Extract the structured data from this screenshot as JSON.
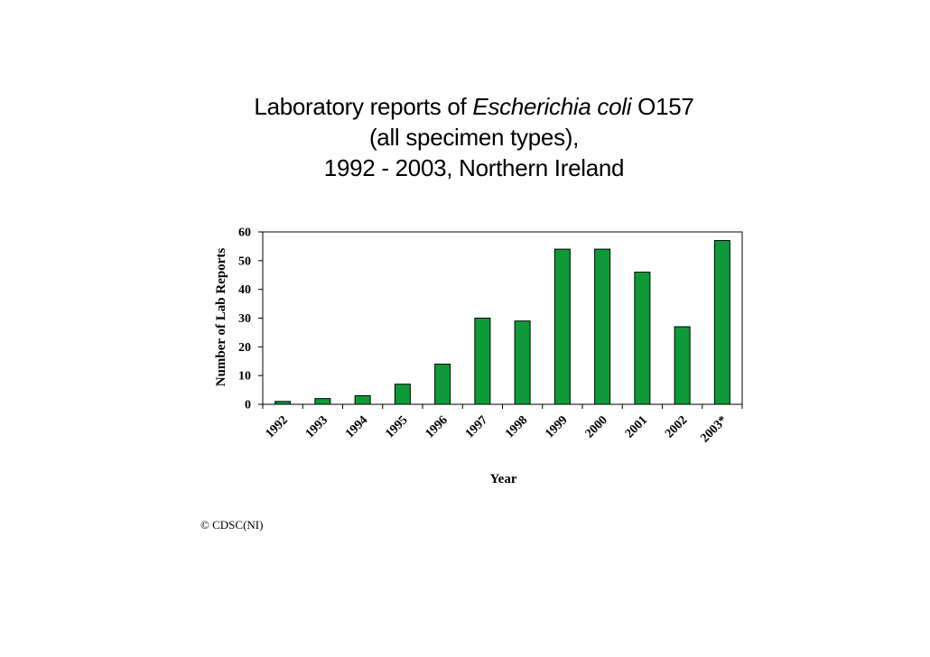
{
  "title": {
    "line1_prefix": "Laboratory reports of ",
    "line1_italic": "Escherichia coli",
    "line1_suffix": " O157",
    "line2": "(all specimen types),",
    "line3": "1992 - 2003, Northern Ireland"
  },
  "copyright": "© CDSC(NI)",
  "colors": {
    "bar_fill": "#0f9a3a",
    "bar_stroke": "#000000",
    "axis": "#000000"
  },
  "chart_data": {
    "type": "bar",
    "title": "Laboratory reports of Escherichia coli O157 (all specimen types), 1992 - 2003, Northern Ireland",
    "xlabel": "Year",
    "ylabel": "Number of Lab Reports",
    "categories": [
      "1992",
      "1993",
      "1994",
      "1995",
      "1996",
      "1997",
      "1998",
      "1999",
      "2000",
      "2001",
      "2002",
      "2003*"
    ],
    "values": [
      1,
      2,
      3,
      7,
      14,
      30,
      29,
      54,
      54,
      46,
      27,
      57
    ],
    "ylim": [
      0,
      60
    ],
    "yticks": [
      "0",
      "10",
      "20",
      "30",
      "40",
      "50",
      "60"
    ],
    "grid": false,
    "legend": "none"
  }
}
